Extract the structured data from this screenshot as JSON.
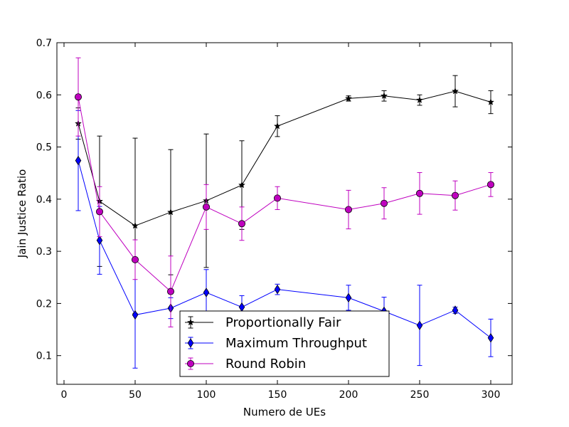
{
  "chart_data": {
    "type": "line",
    "title": "",
    "xlabel": "Numero de UEs",
    "ylabel": "Jain Justice Ratio",
    "xlim": [
      -5,
      315
    ],
    "ylim": [
      0.045,
      0.7
    ],
    "xticks": [
      0,
      50,
      100,
      150,
      200,
      250,
      300
    ],
    "yticks": [
      0.1,
      0.2,
      0.3,
      0.4,
      0.5,
      0.6,
      0.7
    ],
    "xtick_labels": [
      "0",
      "50",
      "100",
      "150",
      "200",
      "250",
      "300"
    ],
    "ytick_labels": [
      "0.1",
      "0.2",
      "0.3",
      "0.4",
      "0.5",
      "0.6",
      "0.7"
    ],
    "grid": false,
    "legend_position": "lower-center",
    "x": [
      10,
      25,
      50,
      75,
      100,
      125,
      150,
      200,
      225,
      250,
      275,
      300
    ],
    "series": [
      {
        "name": "Proportionally Fair",
        "color": "#000000",
        "marker": "star",
        "values": [
          0.545,
          0.396,
          0.349,
          0.375,
          0.397,
          0.427,
          0.54,
          0.593,
          0.598,
          0.59,
          0.607,
          0.586
        ],
        "errors": [
          0.03,
          0.125,
          0.168,
          0.12,
          0.128,
          0.085,
          0.02,
          0.005,
          0.01,
          0.01,
          0.03,
          0.022
        ]
      },
      {
        "name": "Maximum Throughput",
        "color": "#0000ff",
        "marker": "diamond",
        "values": [
          0.474,
          0.321,
          0.178,
          0.191,
          0.221,
          0.193,
          0.227,
          0.211,
          0.185,
          0.158,
          0.187,
          0.134
        ],
        "errors": [
          0.096,
          0.065,
          0.102,
          0.02,
          0.044,
          0.022,
          0.01,
          0.024,
          0.027,
          0.077,
          0.006,
          0.036
        ]
      },
      {
        "name": "Round Robin",
        "color": "#bf00bf",
        "marker": "circle",
        "values": [
          0.596,
          0.376,
          0.284,
          0.223,
          0.385,
          0.353,
          0.402,
          0.38,
          0.392,
          0.411,
          0.407,
          0.428
        ],
        "errors": [
          0.075,
          0.048,
          0.038,
          0.068,
          0.043,
          0.032,
          0.022,
          0.037,
          0.03,
          0.04,
          0.028,
          0.023
        ]
      }
    ]
  }
}
